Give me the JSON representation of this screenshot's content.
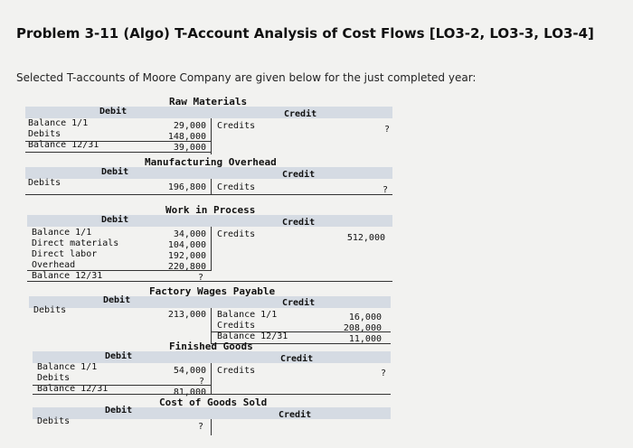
{
  "page": {
    "title": "Problem 3-11 (Algo) T-Account Analysis of Cost Flows [LO3-2, LO3-3, LO3-4]",
    "intro": "Selected T-accounts of Moore Company are given below for the just completed year:"
  },
  "raw_materials": {
    "name": "Raw Materials",
    "debit": "Debit",
    "credit": "Credit",
    "left_labels": [
      "Balance 1/1",
      "Debits",
      "Balance 12/31"
    ],
    "debit_values": [
      "29,000",
      "148,000",
      "39,000"
    ],
    "credit_label": "Credits",
    "credit_value": "?"
  },
  "mfg_overhead": {
    "name": "Manufacturing Overhead",
    "debit": "Debit",
    "credit": "Credit",
    "left_labels": [
      "Debits"
    ],
    "debit_values": [
      "196,800"
    ],
    "credit_label": "Credits",
    "credit_value": "?"
  },
  "wip": {
    "name": "Work in Process",
    "debit": "Debit",
    "credit": "Credit",
    "left_labels": [
      "Balance 1/1",
      "Direct materials",
      "Direct labor",
      "Overhead",
      "Balance 12/31"
    ],
    "debit_values": [
      "34,000",
      "104,000",
      "192,000",
      "220,800",
      "?"
    ],
    "credit_label": "Credits",
    "credit_value": "512,000"
  },
  "wages": {
    "name": "Factory Wages Payable",
    "debit": "Debit",
    "credit": "Credit",
    "left_labels": [
      "Debits"
    ],
    "debit_values": [
      "213,000"
    ],
    "credit_labels": [
      "Balance 1/1",
      "Credits",
      "Balance 12/31"
    ],
    "credit_values": [
      "16,000",
      "208,000",
      "11,000"
    ]
  },
  "finished": {
    "name": "Finished Goods",
    "debit": "Debit",
    "credit": "Credit",
    "left_labels": [
      "Balance 1/1",
      "Debits",
      "Balance 12/31"
    ],
    "debit_values": [
      "54,000",
      "?",
      "81,000"
    ],
    "credit_label": "Credits",
    "credit_value": "?"
  },
  "cogs": {
    "name": "Cost of Goods Sold",
    "debit": "Debit",
    "credit": "Credit",
    "left_labels": [
      "Debits"
    ],
    "debit_values": [
      "?"
    ]
  }
}
